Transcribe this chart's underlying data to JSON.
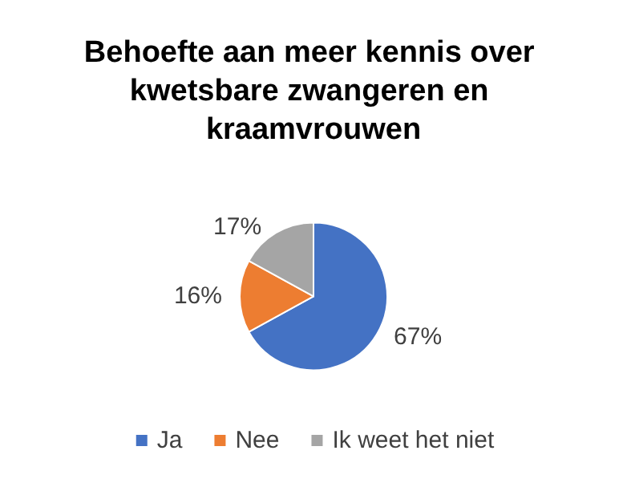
{
  "chart_data": {
    "type": "pie",
    "title": "Behoefte aan meer kennis over kwetsbare zwangeren en kraamvrouwen",
    "categories": [
      "Ja",
      "Nee",
      "Ik weet het niet"
    ],
    "values": [
      67,
      16,
      17
    ],
    "colors": [
      "#4472c4",
      "#ed7d31",
      "#a5a5a5"
    ],
    "value_labels": [
      "67%",
      "16%",
      "17%"
    ],
    "legend": "bottom"
  }
}
